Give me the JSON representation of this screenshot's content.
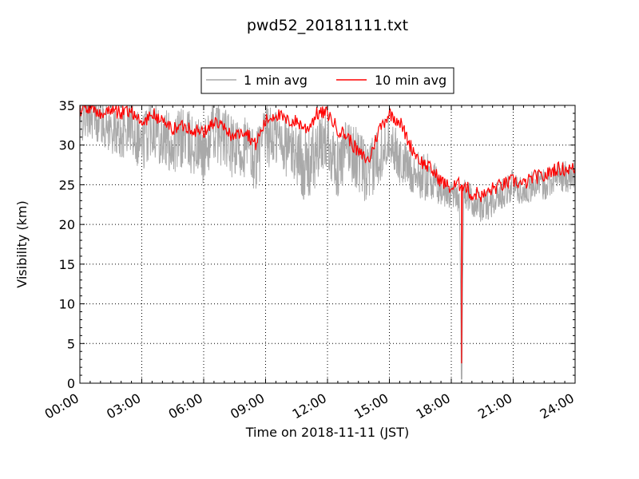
{
  "chart_data": {
    "type": "line",
    "title": "pwd52_20181111.txt",
    "xlabel": "Time on 2018-11-11 (JST)",
    "ylabel": "Visibility (km)",
    "xlim": [
      "00:00",
      "24:00"
    ],
    "ylim": [
      0,
      35
    ],
    "x_ticks": [
      "00:00",
      "03:00",
      "06:00",
      "09:00",
      "12:00",
      "15:00",
      "18:00",
      "21:00",
      "24:00"
    ],
    "y_ticks": [
      0,
      5,
      10,
      15,
      20,
      25,
      30,
      35
    ],
    "grid": true,
    "legend_position": "top-center",
    "series": [
      {
        "name": "1 min avg",
        "color": "#a9a9a9",
        "x_hours": [
          0,
          0.5,
          1,
          1.5,
          2,
          2.5,
          3,
          3.5,
          4,
          4.5,
          5,
          5.5,
          6,
          6.5,
          7,
          7.5,
          8,
          8.5,
          9,
          9.5,
          10,
          10.5,
          11,
          11.5,
          12,
          12.5,
          13,
          13.5,
          14,
          14.5,
          15,
          15.5,
          16,
          16.5,
          17,
          17.5,
          18,
          18.25,
          18.4,
          18.5,
          18.6,
          19,
          19.5,
          20,
          20.5,
          21,
          21.5,
          22,
          22.5,
          23,
          23.5,
          24
        ],
        "values": [
          33,
          34,
          33,
          32,
          31,
          33,
          30,
          33,
          31,
          30,
          31,
          30,
          29,
          32,
          31,
          29,
          30,
          28,
          31,
          31,
          30,
          29,
          27,
          29,
          31,
          27,
          30,
          28,
          26,
          29,
          31,
          28,
          27,
          26,
          26,
          24,
          24,
          24,
          23,
          0.5,
          24,
          23,
          22,
          23,
          24,
          25,
          24,
          25,
          25,
          26,
          26,
          26
        ],
        "spread": [
          3,
          3,
          3,
          3,
          3,
          4,
          4,
          4,
          4,
          4,
          4,
          4,
          4,
          4,
          4,
          4,
          4,
          4,
          4,
          4,
          4,
          4,
          5,
          4,
          4,
          4,
          4,
          4,
          4,
          4,
          3,
          3,
          3,
          3,
          3,
          2,
          2,
          2,
          2,
          0,
          2,
          2,
          2,
          2,
          2,
          2,
          2,
          2,
          2,
          2,
          2,
          2
        ]
      },
      {
        "name": "10 min avg",
        "color": "#ff0000",
        "x_hours": [
          0,
          0.5,
          1,
          1.5,
          2,
          2.5,
          3,
          3.5,
          4,
          4.5,
          5,
          5.5,
          6,
          6.5,
          7,
          7.5,
          8,
          8.5,
          9,
          9.5,
          10,
          10.5,
          11,
          11.5,
          12,
          12.5,
          13,
          13.5,
          14,
          14.5,
          15,
          15.5,
          16,
          16.5,
          17,
          17.5,
          18,
          18.25,
          18.4,
          18.45,
          18.5,
          18.55,
          18.6,
          18.8,
          19,
          19.25,
          19.5,
          19.75,
          20,
          20.5,
          21,
          21.5,
          22,
          22.5,
          23,
          23.5,
          24
        ],
        "values": [
          34.5,
          34.5,
          34,
          34.5,
          34,
          34.5,
          32.5,
          34,
          33,
          32,
          32.5,
          32,
          31.5,
          33,
          32,
          31,
          32,
          30,
          33,
          34,
          33,
          33,
          32,
          34,
          34,
          32,
          31,
          29,
          28,
          32,
          34,
          33,
          30,
          28,
          27,
          25.5,
          24.5,
          25,
          25,
          24.5,
          2.5,
          25,
          25,
          24.5,
          23.5,
          24,
          23.5,
          24,
          24.5,
          25,
          25.5,
          25,
          26,
          26,
          27,
          27,
          27
        ]
      }
    ]
  }
}
